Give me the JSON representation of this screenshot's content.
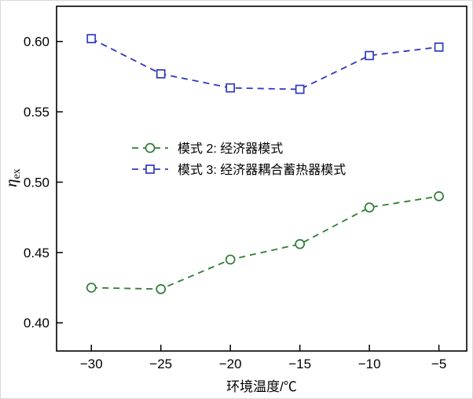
{
  "chart_data": {
    "type": "line",
    "x": [
      -30,
      -25,
      -20,
      -15,
      -10,
      -5
    ],
    "series": [
      {
        "name": "模式 2: 经济器模式",
        "marker": "circle",
        "color": "#2e7d32",
        "values": [
          0.425,
          0.424,
          0.445,
          0.456,
          0.482,
          0.49
        ]
      },
      {
        "name": "模式 3: 经济器耦合蓄热器模式",
        "marker": "square",
        "color": "#2f39bf",
        "values": [
          0.602,
          0.577,
          0.567,
          0.566,
          0.59,
          0.596
        ]
      }
    ],
    "title": "",
    "xlabel": "环境温度/℃",
    "ylabel": "η_ex",
    "xlim": [
      -32.5,
      -3
    ],
    "ylim": [
      0.38,
      0.625
    ],
    "xticks": [
      -30,
      -25,
      -20,
      -15,
      -10,
      -5
    ],
    "yticks": [
      0.4,
      0.45,
      0.5,
      0.55,
      0.6
    ],
    "grid": false,
    "line_style": "dashed",
    "legend_position": "inside-center-left"
  },
  "labels": {
    "ylabel_main": "η",
    "ylabel_sub": "ex"
  }
}
